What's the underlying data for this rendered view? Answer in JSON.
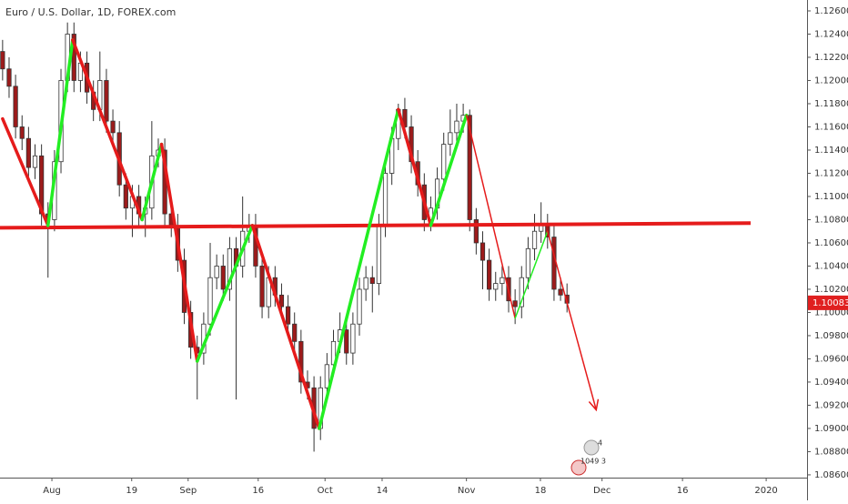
{
  "chart_data": {
    "type": "candlestick",
    "title": "Euro / U.S. Dollar, 1D, FOREX.com",
    "up_color": "#ffffff",
    "down_color": "#9c1b1b",
    "wick_color": "#333333",
    "grid": false,
    "xlim": [
      -0.4,
      124
    ],
    "ylim": [
      1.08576,
      1.12694
    ],
    "xticks": [
      {
        "value": 7.6,
        "label": "Aug"
      },
      {
        "value": 19.9,
        "label": "19"
      },
      {
        "value": 28.6,
        "label": "Sep"
      },
      {
        "value": 39.4,
        "label": "16"
      },
      {
        "value": 49.7,
        "label": "Oct"
      },
      {
        "value": 58.5,
        "label": "14"
      },
      {
        "value": 71.5,
        "label": "Nov"
      },
      {
        "value": 82.9,
        "label": "18"
      },
      {
        "value": 92.4,
        "label": "Dec"
      },
      {
        "value": 104.8,
        "label": "16"
      },
      {
        "value": 117.7,
        "label": "2020"
      }
    ],
    "yticks": [
      {
        "value": 1.086,
        "label": "1.08600"
      },
      {
        "value": 1.088,
        "label": "1.08800"
      },
      {
        "value": 1.09,
        "label": "1.09000"
      },
      {
        "value": 1.092,
        "label": "1.09200"
      },
      {
        "value": 1.094,
        "label": "1.09400"
      },
      {
        "value": 1.096,
        "label": "1.09600"
      },
      {
        "value": 1.098,
        "label": "1.09800"
      },
      {
        "value": 1.1,
        "label": "1.10000"
      },
      {
        "value": 1.102,
        "label": "1.10200"
      },
      {
        "value": 1.104,
        "label": "1.10400"
      },
      {
        "value": 1.106,
        "label": "1.10600"
      },
      {
        "value": 1.108,
        "label": "1.10800"
      },
      {
        "value": 1.11,
        "label": "1.11000"
      },
      {
        "value": 1.112,
        "label": "1.11200"
      },
      {
        "value": 1.114,
        "label": "1.11400"
      },
      {
        "value": 1.116,
        "label": "1.11600"
      },
      {
        "value": 1.118,
        "label": "1.11800"
      },
      {
        "value": 1.12,
        "label": "1.12000"
      },
      {
        "value": 1.122,
        "label": "1.12200"
      },
      {
        "value": 1.124,
        "label": "1.12400"
      },
      {
        "value": 1.126,
        "label": "1.12600"
      }
    ],
    "last_price": {
      "value": 1.10083,
      "label": "1.10083",
      "color": "#e02020"
    },
    "open": [
      1.1225,
      1.121,
      1.1195,
      1.116,
      1.115,
      1.1125,
      1.1135,
      1.1085,
      1.108,
      1.113,
      1.12,
      1.124,
      1.12,
      1.1215,
      1.119,
      1.1175,
      1.12,
      1.1165,
      1.1155,
      1.111,
      1.109,
      1.11,
      1.1085,
      1.109,
      1.1135,
      1.114,
      1.1085,
      1.1075,
      1.1045,
      1.1,
      1.097,
      1.0965,
      1.099,
      1.103,
      1.104,
      1.102,
      1.1055,
      1.104,
      1.107,
      1.1075,
      1.104,
      1.1005,
      1.103,
      1.1015,
      1.1005,
      1.099,
      1.0975,
      1.094,
      1.0935,
      1.09,
      1.0935,
      1.0955,
      1.0975,
      1.0985,
      1.0965,
      1.099,
      1.102,
      1.103,
      1.1025,
      1.1075,
      1.112,
      1.115,
      1.1175,
      1.116,
      1.113,
      1.111,
      1.108,
      1.109,
      1.1115,
      1.1145,
      1.1155,
      1.1165,
      1.117,
      1.108,
      1.106,
      1.1045,
      1.102,
      1.1025,
      1.103,
      1.101,
      1.1005,
      1.103,
      1.1055,
      1.107,
      1.1075,
      1.1065,
      1.102,
      1.1015
    ],
    "high": [
      1.1235,
      1.122,
      1.1205,
      1.117,
      1.116,
      1.1145,
      1.1145,
      1.1095,
      1.114,
      1.121,
      1.125,
      1.125,
      1.1225,
      1.1225,
      1.12,
      1.1225,
      1.121,
      1.1175,
      1.1165,
      1.112,
      1.111,
      1.111,
      1.11,
      1.1165,
      1.115,
      1.115,
      1.1095,
      1.1085,
      1.1055,
      1.101,
      1.098,
      1.1,
      1.106,
      1.105,
      1.105,
      1.1065,
      1.1065,
      1.11,
      1.1085,
      1.1085,
      1.105,
      1.104,
      1.104,
      1.1025,
      1.1015,
      1.1,
      1.0985,
      1.095,
      1.0945,
      1.0945,
      1.0965,
      1.0985,
      1.1,
      1.0995,
      1.1,
      1.103,
      1.104,
      1.104,
      1.1085,
      1.113,
      1.116,
      1.118,
      1.1185,
      1.117,
      1.114,
      1.112,
      1.11,
      1.1125,
      1.1155,
      1.1175,
      1.118,
      1.118,
      1.1175,
      1.109,
      1.107,
      1.1055,
      1.1035,
      1.104,
      1.104,
      1.102,
      1.104,
      1.1065,
      1.1085,
      1.1095,
      1.1085,
      1.1075,
      1.103,
      1.1025
    ],
    "low": [
      1.12,
      1.1185,
      1.115,
      1.114,
      1.1115,
      1.1115,
      1.1075,
      1.103,
      1.107,
      1.112,
      1.119,
      1.119,
      1.119,
      1.118,
      1.1165,
      1.1165,
      1.1155,
      1.1145,
      1.11,
      1.108,
      1.1065,
      1.1075,
      1.1065,
      1.108,
      1.1125,
      1.1075,
      1.1065,
      1.1035,
      1.099,
      1.096,
      1.0925,
      1.0955,
      1.098,
      1.102,
      1.101,
      1.101,
      1.0925,
      1.103,
      1.106,
      1.103,
      1.0995,
      1.0995,
      1.1005,
      1.0995,
      1.098,
      1.0965,
      1.093,
      1.0925,
      1.088,
      1.089,
      1.0925,
      1.0945,
      1.0965,
      1.0955,
      1.0955,
      1.098,
      1.101,
      1.1,
      1.1015,
      1.1065,
      1.111,
      1.114,
      1.115,
      1.112,
      1.11,
      1.107,
      1.107,
      1.108,
      1.1105,
      1.1135,
      1.1145,
      1.1155,
      1.107,
      1.105,
      1.102,
      1.101,
      1.101,
      1.1015,
      1.1,
      1.099,
      1.0995,
      1.102,
      1.1045,
      1.106,
      1.1055,
      1.101,
      1.101,
      1.1
    ],
    "close": [
      1.121,
      1.1195,
      1.116,
      1.115,
      1.1125,
      1.1135,
      1.1085,
      1.108,
      1.113,
      1.12,
      1.124,
      1.12,
      1.1215,
      1.119,
      1.1175,
      1.12,
      1.1165,
      1.1155,
      1.111,
      1.109,
      1.11,
      1.1085,
      1.109,
      1.1135,
      1.114,
      1.1085,
      1.1075,
      1.1045,
      1.1,
      1.097,
      1.0965,
      1.099,
      1.103,
      1.104,
      1.102,
      1.1055,
      1.104,
      1.107,
      1.1075,
      1.104,
      1.1005,
      1.103,
      1.1015,
      1.1005,
      1.099,
      1.0975,
      1.094,
      1.0935,
      1.09,
      1.0935,
      1.0955,
      1.0975,
      1.0985,
      1.0965,
      1.099,
      1.102,
      1.103,
      1.1025,
      1.1075,
      1.112,
      1.115,
      1.1175,
      1.116,
      1.113,
      1.111,
      1.108,
      1.109,
      1.1115,
      1.1145,
      1.1155,
      1.1165,
      1.117,
      1.108,
      1.106,
      1.1045,
      1.102,
      1.1025,
      1.103,
      1.101,
      1.1005,
      1.103,
      1.1055,
      1.107,
      1.1075,
      1.1065,
      1.102,
      1.1015,
      1.1008
    ],
    "zigzag": {
      "up_color": "#22ee22",
      "down_color": "#e51b1b",
      "x": [
        0,
        7,
        10.8,
        21.5,
        24.5,
        30,
        38.5,
        48.8,
        61,
        66,
        71.5,
        79,
        84,
        91.5
      ],
      "y": [
        1.1167,
        1.1075,
        1.1235,
        1.108,
        1.1145,
        1.0958,
        1.1075,
        1.09,
        1.1175,
        1.1075,
        1.117,
        1.0995,
        1.107,
        1.0916
      ]
    },
    "level_line": {
      "color": "#e51b1b",
      "x": [
        -0.4,
        115.3
      ],
      "y": [
        1.1073,
        1.1077
      ]
    },
    "event_badges": [
      "4",
      "1049 3"
    ]
  }
}
